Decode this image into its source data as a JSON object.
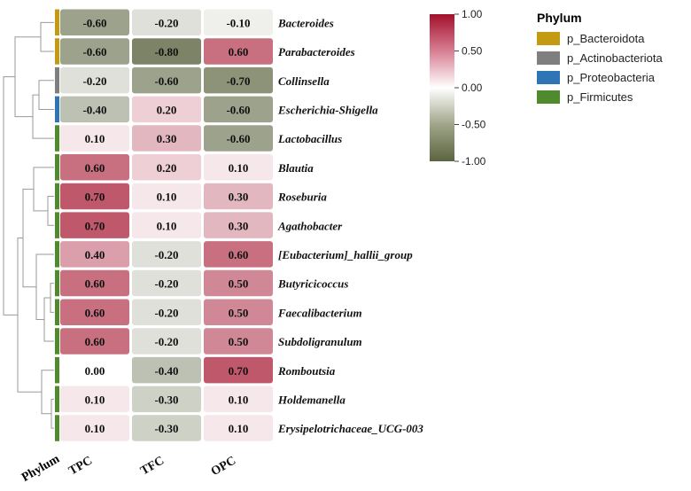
{
  "chart_data": {
    "type": "heatmap",
    "columns": [
      "TPC",
      "TFC",
      "OPC"
    ],
    "rows": [
      {
        "taxon": "Bacteroides",
        "phylum": "p_Bacteroidota",
        "values": [
          -0.6,
          -0.2,
          -0.1
        ],
        "labels": [
          "-0.60",
          "-0.20",
          "-0.10"
        ]
      },
      {
        "taxon": "Parabacteroides",
        "phylum": "p_Bacteroidota",
        "values": [
          -0.6,
          -0.8,
          0.6
        ],
        "labels": [
          "-0.60",
          "-0.80",
          "0.60"
        ]
      },
      {
        "taxon": "Collinsella",
        "phylum": "p_Actinobacteriota",
        "values": [
          -0.2,
          -0.6,
          -0.7
        ],
        "labels": [
          "-0.20",
          "-0.60",
          "-0.70"
        ]
      },
      {
        "taxon": "Escherichia-Shigella",
        "phylum": "p_Proteobacteria",
        "values": [
          -0.4,
          0.2,
          -0.6
        ],
        "labels": [
          "-0.40",
          "0.20",
          "-0.60"
        ]
      },
      {
        "taxon": "Lactobacillus",
        "phylum": "p_Firmicutes",
        "values": [
          0.1,
          0.3,
          -0.6
        ],
        "labels": [
          "0.10",
          "0.30",
          "-0.60"
        ]
      },
      {
        "taxon": "Blautia",
        "phylum": "p_Firmicutes",
        "values": [
          0.6,
          0.2,
          0.1
        ],
        "labels": [
          "0.60",
          "0.20",
          "0.10"
        ]
      },
      {
        "taxon": "Roseburia",
        "phylum": "p_Firmicutes",
        "values": [
          0.7,
          0.1,
          0.3
        ],
        "labels": [
          "0.70",
          "0.10",
          "0.30"
        ]
      },
      {
        "taxon": "Agathobacter",
        "phylum": "p_Firmicutes",
        "values": [
          0.7,
          0.1,
          0.3
        ],
        "labels": [
          "0.70",
          "0.10",
          "0.30"
        ]
      },
      {
        "taxon": "[Eubacterium]_hallii_group",
        "phylum": "p_Firmicutes",
        "values": [
          0.4,
          -0.2,
          0.6
        ],
        "labels": [
          "0.40",
          "-0.20",
          "0.60"
        ]
      },
      {
        "taxon": "Butyricicoccus",
        "phylum": "p_Firmicutes",
        "values": [
          0.6,
          -0.2,
          0.5
        ],
        "labels": [
          "0.60",
          "-0.20",
          "0.50"
        ]
      },
      {
        "taxon": "Faecalibacterium",
        "phylum": "p_Firmicutes",
        "values": [
          0.6,
          -0.2,
          0.5
        ],
        "labels": [
          "0.60",
          "-0.20",
          "0.50"
        ]
      },
      {
        "taxon": "Subdoligranulum",
        "phylum": "p_Firmicutes",
        "values": [
          0.6,
          -0.2,
          0.5
        ],
        "labels": [
          "0.60",
          "-0.20",
          "0.50"
        ]
      },
      {
        "taxon": "Romboutsia",
        "phylum": "p_Firmicutes",
        "values": [
          0.0,
          -0.4,
          0.7
        ],
        "labels": [
          "0.00",
          "-0.40",
          "0.70"
        ]
      },
      {
        "taxon": "Holdemanella",
        "phylum": "p_Firmicutes",
        "values": [
          0.1,
          -0.3,
          0.1
        ],
        "labels": [
          "0.10",
          "-0.30",
          "0.10"
        ]
      },
      {
        "taxon": "Erysipelotrichaceae_UCG-003",
        "phylum": "p_Firmicutes",
        "values": [
          0.1,
          -0.3,
          0.1
        ],
        "labels": [
          "0.10",
          "-0.30",
          "0.10"
        ]
      }
    ],
    "annotation_label": "Phylum",
    "colorbar": {
      "range": [
        -1,
        1
      ],
      "ticks": [
        1,
        0.5,
        0,
        -0.5,
        -1
      ],
      "tick_labels": [
        "1.00",
        "0.50",
        "0.00",
        "-0.50",
        "-1.00"
      ],
      "low_color": "#5b6440",
      "mid_color": "#ffffff",
      "high_color": "#a3102c"
    },
    "phylum_legend": {
      "title": "Phylum",
      "entries": [
        {
          "name": "p_Bacteroidota",
          "color": "#c49a12"
        },
        {
          "name": "p_Actinobacteriota",
          "color": "#7f7f7f"
        },
        {
          "name": "p_Proteobacteria",
          "color": "#2e75b6"
        },
        {
          "name": "p_Firmicutes",
          "color": "#4f8a2d"
        }
      ]
    }
  }
}
